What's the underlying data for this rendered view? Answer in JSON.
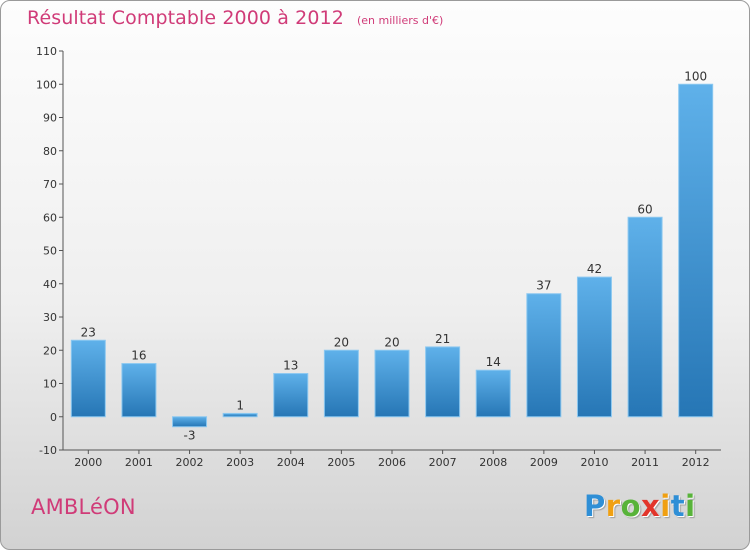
{
  "chart_data": {
    "type": "bar",
    "title": "Résultat Comptable 2000 à 2012",
    "subtitle": "(en milliers d'€)",
    "categories": [
      "2000",
      "2001",
      "2002",
      "2003",
      "2004",
      "2005",
      "2006",
      "2007",
      "2008",
      "2009",
      "2010",
      "2011",
      "2012"
    ],
    "values": [
      23,
      16,
      -3,
      1,
      13,
      20,
      20,
      21,
      14,
      37,
      42,
      60,
      100
    ],
    "value_labels": [
      "23",
      "16",
      "-3",
      "1",
      "13",
      "20",
      "20",
      "21",
      "14",
      "37",
      "42",
      "60",
      "100"
    ],
    "ylim": [
      -10,
      110
    ],
    "yticks": [
      -10,
      0,
      10,
      20,
      30,
      40,
      50,
      60,
      70,
      80,
      90,
      100,
      110
    ],
    "xlabel": "",
    "ylabel": "",
    "grid": false,
    "bar_color": "#3a95d8"
  },
  "footer": {
    "town": "AMBLéON",
    "logo_letters": [
      "P",
      "r",
      "o",
      "x",
      "i",
      "t",
      "i"
    ],
    "logo_colors": [
      "#2f8fd6",
      "#f0a012",
      "#58b33a",
      "#e2352b",
      "#f0a012",
      "#2f8fd6",
      "#58b33a"
    ]
  }
}
